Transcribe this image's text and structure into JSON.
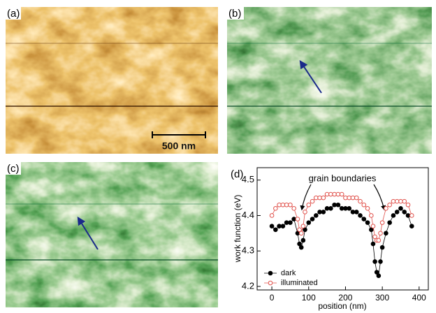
{
  "panels": [
    {
      "label": "(a)",
      "scale_bar": "500 nm"
    },
    {
      "label": "(b)"
    },
    {
      "label": "(c)"
    },
    {
      "label": "(d)"
    }
  ],
  "chart_data": {
    "type": "scatter-line",
    "x_label": "position (nm)",
    "y_label": "work function (eV)",
    "annotation": "grain boundaries",
    "xlim": [
      -40,
      425
    ],
    "ylim": [
      4.19,
      4.535
    ],
    "xticks": [
      0,
      100,
      200,
      300,
      400
    ],
    "yticks": [
      4.2,
      4.3,
      4.4,
      4.5
    ],
    "legend": "lower left",
    "x": [
      0,
      10,
      20,
      30,
      40,
      50,
      60,
      70,
      75,
      80,
      85,
      90,
      100,
      110,
      120,
      130,
      140,
      150,
      160,
      170,
      180,
      190,
      200,
      210,
      220,
      230,
      240,
      250,
      260,
      270,
      275,
      280,
      285,
      290,
      295,
      300,
      310,
      320,
      330,
      340,
      350,
      360,
      370,
      380
    ],
    "series": [
      {
        "name": "dark",
        "color": "#000000",
        "filled": true,
        "values": [
          4.37,
          4.36,
          4.37,
          4.37,
          4.38,
          4.38,
          4.39,
          4.35,
          4.32,
          4.31,
          4.33,
          4.36,
          4.38,
          4.39,
          4.4,
          4.41,
          4.41,
          4.42,
          4.42,
          4.43,
          4.43,
          4.42,
          4.42,
          4.42,
          4.41,
          4.41,
          4.4,
          4.39,
          4.38,
          4.36,
          4.32,
          4.27,
          4.24,
          4.23,
          4.27,
          4.31,
          4.35,
          4.38,
          4.4,
          4.41,
          4.42,
          4.41,
          4.4,
          4.37
        ]
      },
      {
        "name": "illuminated",
        "color": "#e0504a",
        "filled": false,
        "values": [
          4.4,
          4.42,
          4.43,
          4.43,
          4.43,
          4.43,
          4.42,
          4.39,
          4.36,
          4.35,
          4.37,
          4.41,
          4.43,
          4.44,
          4.45,
          4.45,
          4.45,
          4.46,
          4.46,
          4.46,
          4.46,
          4.46,
          4.45,
          4.45,
          4.45,
          4.45,
          4.44,
          4.43,
          4.42,
          4.4,
          4.37,
          4.34,
          4.33,
          4.33,
          4.35,
          4.38,
          4.42,
          4.43,
          4.44,
          4.44,
          4.44,
          4.44,
          4.43,
          4.4
        ]
      }
    ]
  }
}
